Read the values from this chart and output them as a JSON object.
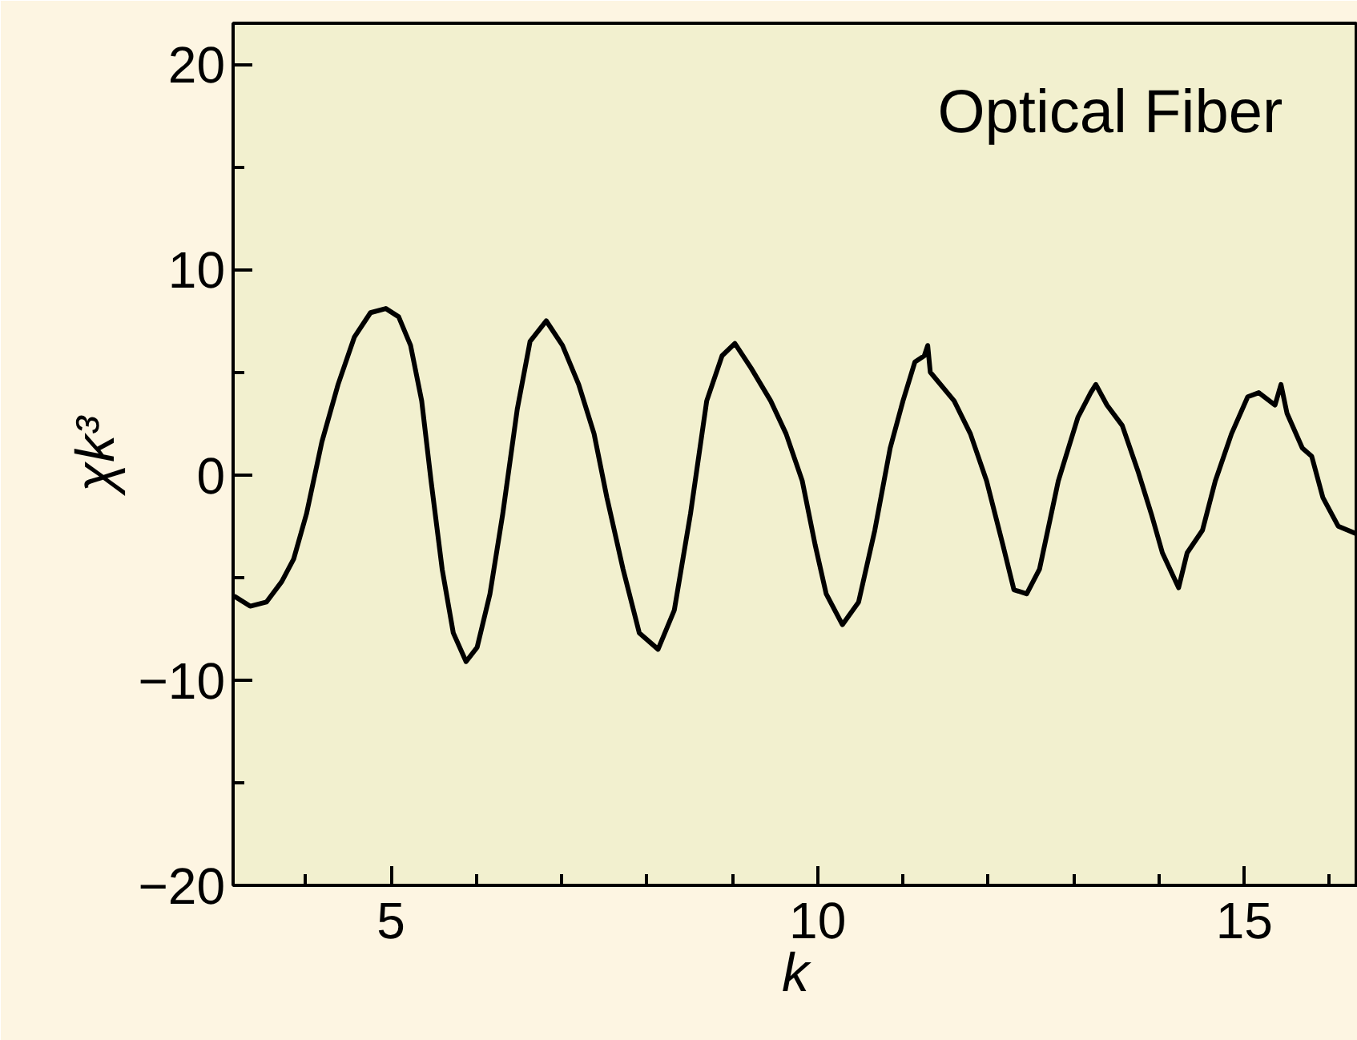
{
  "chart_data": {
    "type": "line",
    "xlabel": "k",
    "ylabel": "χk³",
    "annotations": [
      "Optical Fiber"
    ],
    "grid": false,
    "marker": "none",
    "line_style": "solid",
    "xlim": [
      3.15,
      16.33
    ],
    "ylim": [
      -20,
      22
    ],
    "xticks": [
      {
        "value": 4,
        "label": null
      },
      5,
      {
        "value": 6,
        "label": null
      },
      {
        "value": 7,
        "label": null
      },
      {
        "value": 8,
        "label": null
      },
      {
        "value": 9,
        "label": null
      },
      10,
      {
        "value": 11,
        "label": null
      },
      {
        "value": 12,
        "label": null
      },
      {
        "value": 13,
        "label": null
      },
      {
        "value": 14,
        "label": null
      },
      15,
      {
        "value": 16,
        "label": null
      }
    ],
    "yticks": [
      {
        "value": -20,
        "label": "−20"
      },
      {
        "value": -15,
        "label": null
      },
      {
        "value": -10,
        "label": "−10"
      },
      {
        "value": -5,
        "label": null
      },
      0,
      {
        "value": 5,
        "label": null
      },
      10,
      {
        "value": 15,
        "label": null
      },
      20
    ],
    "series": [
      {
        "color": "#000000",
        "x": [
          3.16,
          3.35,
          3.54,
          3.72,
          3.86,
          4.01,
          4.19,
          4.38,
          4.57,
          4.76,
          4.94,
          5.09,
          5.23,
          5.36,
          5.47,
          5.6,
          5.73,
          5.88,
          6.01,
          6.16,
          6.31,
          6.48,
          6.63,
          6.82,
          7.01,
          7.2,
          7.38,
          7.53,
          7.72,
          7.91,
          8.13,
          8.32,
          8.51,
          8.7,
          8.88,
          9.03,
          9.22,
          9.45,
          9.63,
          9.82,
          9.97,
          10.1,
          10.29,
          10.48,
          10.67,
          10.85,
          11.0,
          11.14,
          11.25,
          11.29,
          11.32,
          11.6,
          11.79,
          11.98,
          12.17,
          12.3,
          12.45,
          12.6,
          12.82,
          13.05,
          13.2,
          13.26,
          13.39,
          13.57,
          13.76,
          13.91,
          14.04,
          14.23,
          14.33,
          14.51,
          14.66,
          14.85,
          15.04,
          15.17,
          15.36,
          15.43,
          15.5,
          15.68,
          15.79,
          15.92,
          16.1,
          16.33
        ],
        "values": [
          -5.9,
          -6.4,
          -6.2,
          -5.2,
          -4.1,
          -1.9,
          1.6,
          4.4,
          6.7,
          7.9,
          8.1,
          7.7,
          6.3,
          3.6,
          -0.3,
          -4.6,
          -7.7,
          -9.1,
          -8.4,
          -5.8,
          -1.9,
          3.2,
          6.5,
          7.5,
          6.3,
          4.4,
          2.0,
          -1.1,
          -4.6,
          -7.7,
          -8.5,
          -6.6,
          -1.9,
          3.6,
          5.8,
          6.4,
          5.2,
          3.6,
          2.0,
          -0.3,
          -3.4,
          -5.8,
          -7.3,
          -6.2,
          -2.7,
          1.3,
          3.6,
          5.5,
          5.8,
          6.3,
          5.0,
          3.6,
          2.0,
          -0.3,
          -3.4,
          -5.6,
          -5.8,
          -4.6,
          -0.3,
          2.8,
          4.0,
          4.4,
          3.4,
          2.4,
          0.1,
          -1.9,
          -3.8,
          -5.5,
          -3.8,
          -2.7,
          -0.3,
          2.0,
          3.8,
          4.0,
          3.4,
          4.4,
          3.0,
          1.3,
          0.9,
          -1.1,
          -2.5,
          -2.9
        ]
      }
    ]
  }
}
